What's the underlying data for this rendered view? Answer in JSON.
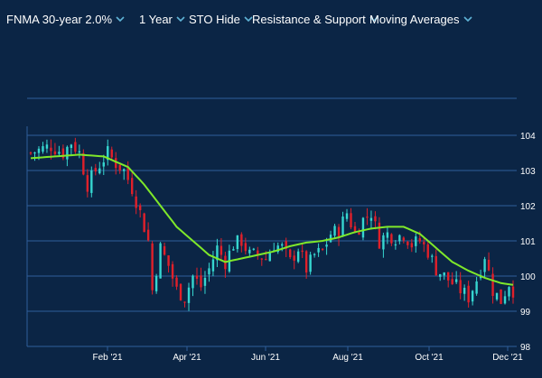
{
  "toolbar": {
    "instrument": "FNMA 30-year 2.0%",
    "range": "1 Year",
    "sto": "STO Hide",
    "resistance": "Resistance & Support",
    "moving_averages": "Moving Averages"
  },
  "colors": {
    "background": "#0b2545",
    "grid": "#2f5f9a",
    "up_candle": "#36d6d0",
    "down_candle": "#e0202a",
    "moving_average": "#7fe82a",
    "chevron": "#5fb3d6"
  },
  "chart_data": {
    "type": "candlestick",
    "title": "",
    "xlabel": "",
    "ylabel": "",
    "ylim": [
      98,
      104.8
    ],
    "y_ticks": [
      "104",
      "103",
      "102",
      "101",
      "100",
      "99",
      "98"
    ],
    "x_ticks": [
      "Feb '21",
      "Apr '21",
      "Jun '21",
      "Aug '21",
      "Oct '21",
      "Dec '21"
    ],
    "grid": "horizontal",
    "close_anchors": [
      [
        0,
        103.5
      ],
      [
        5,
        103.7
      ],
      [
        8,
        103.5
      ],
      [
        10,
        103.8
      ],
      [
        12,
        103.5
      ],
      [
        14,
        102.6
      ],
      [
        16,
        103.0
      ],
      [
        19,
        103.5
      ],
      [
        21,
        103.2
      ],
      [
        23,
        103.0
      ],
      [
        25,
        102.5
      ],
      [
        27,
        101.8
      ],
      [
        29,
        101.0
      ],
      [
        30,
        99.6
      ],
      [
        32,
        100.8
      ],
      [
        34,
        100.3
      ],
      [
        36,
        99.6
      ],
      [
        38,
        99.4
      ],
      [
        40,
        100.0
      ],
      [
        42,
        99.7
      ],
      [
        44,
        100.2
      ],
      [
        46,
        100.8
      ],
      [
        48,
        100.4
      ],
      [
        50,
        100.9
      ],
      [
        52,
        101.0
      ],
      [
        54,
        100.6
      ],
      [
        56,
        100.6
      ],
      [
        58,
        100.5
      ],
      [
        60,
        100.9
      ],
      [
        62,
        100.8
      ],
      [
        64,
        100.4
      ],
      [
        66,
        100.8
      ],
      [
        68,
        100.2
      ],
      [
        70,
        100.6
      ],
      [
        72,
        100.7
      ],
      [
        74,
        101.2
      ],
      [
        76,
        101.3
      ],
      [
        78,
        101.8
      ],
      [
        80,
        101.2
      ],
      [
        82,
        101.6
      ],
      [
        84,
        101.8
      ],
      [
        86,
        101.0
      ],
      [
        88,
        101.2
      ],
      [
        90,
        101.1
      ],
      [
        92,
        101.2
      ],
      [
        94,
        100.9
      ],
      [
        96,
        101.0
      ],
      [
        98,
        100.7
      ],
      [
        100,
        100.2
      ],
      [
        102,
        100.0
      ],
      [
        104,
        99.8
      ],
      [
        106,
        99.6
      ],
      [
        108,
        99.4
      ],
      [
        110,
        99.9
      ],
      [
        112,
        100.6
      ],
      [
        114,
        99.6
      ],
      [
        116,
        99.3
      ],
      [
        118,
        99.8
      ],
      [
        119,
        99.6
      ]
    ],
    "moving_average_anchors": [
      [
        0,
        103.35
      ],
      [
        6,
        103.4
      ],
      [
        12,
        103.45
      ],
      [
        18,
        103.4
      ],
      [
        24,
        103.1
      ],
      [
        28,
        102.6
      ],
      [
        32,
        102.0
      ],
      [
        36,
        101.4
      ],
      [
        40,
        101.0
      ],
      [
        44,
        100.6
      ],
      [
        48,
        100.4
      ],
      [
        52,
        100.5
      ],
      [
        56,
        100.6
      ],
      [
        60,
        100.7
      ],
      [
        64,
        100.85
      ],
      [
        68,
        100.95
      ],
      [
        72,
        101.0
      ],
      [
        76,
        101.1
      ],
      [
        80,
        101.25
      ],
      [
        84,
        101.35
      ],
      [
        88,
        101.4
      ],
      [
        92,
        101.4
      ],
      [
        96,
        101.2
      ],
      [
        100,
        100.8
      ],
      [
        104,
        100.4
      ],
      [
        108,
        100.15
      ],
      [
        112,
        99.95
      ],
      [
        116,
        99.8
      ],
      [
        119,
        99.75
      ]
    ]
  }
}
